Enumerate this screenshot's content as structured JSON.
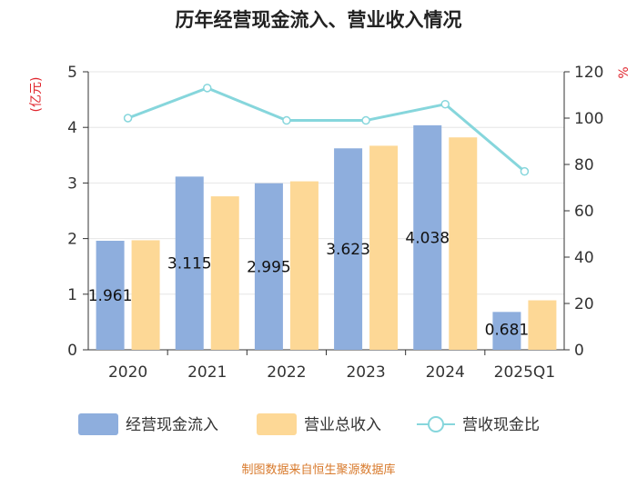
{
  "chart_data": {
    "type": "bar+line",
    "title": "历年经营现金流入、营业收入情况",
    "categories": [
      "2020",
      "2021",
      "2022",
      "2023",
      "2024",
      "2025Q1"
    ],
    "series": [
      {
        "name": "经营现金流入",
        "kind": "bar",
        "axis": "left",
        "color": "#8eaedd",
        "values": [
          1.961,
          3.115,
          2.995,
          3.623,
          4.038,
          0.681
        ],
        "labels": [
          "1.961",
          "3.115",
          "2.995",
          "3.623",
          "4.038",
          "0.681"
        ]
      },
      {
        "name": "营业总收入",
        "kind": "bar",
        "axis": "left",
        "color": "#fdd896",
        "values": [
          1.97,
          2.76,
          3.03,
          3.67,
          3.82,
          0.89
        ]
      },
      {
        "name": "营收现金比",
        "kind": "line",
        "axis": "right",
        "color": "#86d6dc",
        "values": [
          100,
          113,
          99,
          99,
          106,
          77
        ]
      }
    ],
    "left_axis": {
      "label": "(亿元)",
      "min": 0,
      "max": 5,
      "ticks": [
        "0",
        "1",
        "2",
        "3",
        "4",
        "5"
      ]
    },
    "right_axis": {
      "label": "%",
      "min": 0,
      "max": 120,
      "ticks": [
        "0",
        "20",
        "40",
        "60",
        "80",
        "100",
        "120"
      ]
    },
    "grid": true,
    "legend_position": "bottom"
  },
  "source_text": "制图数据来自恒生聚源数据库"
}
